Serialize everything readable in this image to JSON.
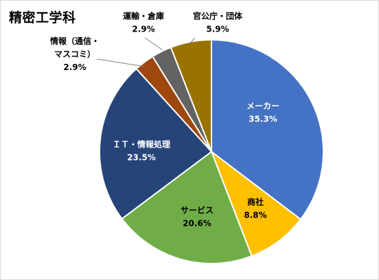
{
  "chart_data": {
    "type": "pie",
    "title": "精密工学科",
    "slices": [
      {
        "name": "メーカー",
        "value": 35.3,
        "label": "35.3%",
        "color": "#4472C4",
        "label_color": "#ffffff"
      },
      {
        "name": "商社",
        "value": 8.8,
        "label": "8.8%",
        "color": "#FFC000",
        "label_color": "#000000"
      },
      {
        "name": "サービス",
        "value": 20.6,
        "label": "20.6%",
        "color": "#70AD47",
        "label_color": "#000000"
      },
      {
        "name": "ＩＴ・情報処理",
        "value": 23.5,
        "label": "23.5%",
        "color": "#264478",
        "label_color": "#ffffff"
      },
      {
        "name_lines": [
          "情報（通信・",
          "マスコミ）"
        ],
        "value": 2.9,
        "label": "2.9%",
        "color": "#9E480E",
        "label_color": "#000000"
      },
      {
        "name_lines": [
          "運輸・倉庫"
        ],
        "value": 2.9,
        "label": "2.9%",
        "color": "#636363",
        "label_color": "#000000"
      },
      {
        "name_lines": [
          "官公庁・団体"
        ],
        "value": 5.9,
        "label": "5.9%",
        "color": "#997300",
        "label_color": "#000000"
      }
    ],
    "start_angle_deg": 0,
    "direction": "clockwise",
    "legend": "none"
  }
}
